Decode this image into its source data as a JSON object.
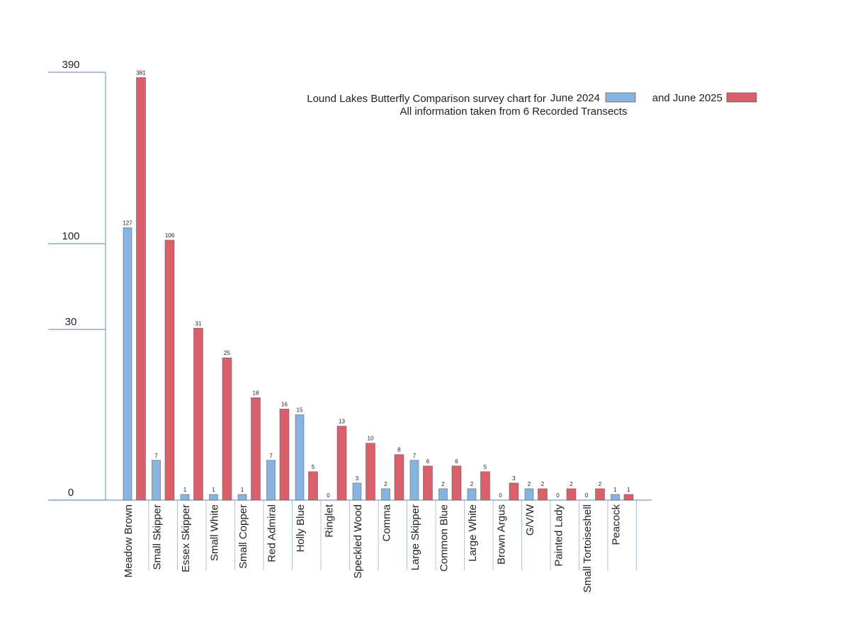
{
  "chart_data": {
    "type": "bar",
    "title": "Lound Lakes Butterfly Comparison survey chart for",
    "subtitle": "All information taken from  6  Recorded Transects",
    "categories": [
      "Meadow Brown",
      "Small Skipper",
      "Essex Skipper",
      "Small White",
      "Small Copper",
      "Red Admiral",
      "Holly Blue",
      "Ringlet",
      "Speckled Wood",
      "Comma",
      "Large Skipper",
      "Common Blue",
      "Large White",
      "Brown Argus",
      "G/V/W",
      "Painted Lady",
      "Small Tortoiseshell",
      "Peacock"
    ],
    "series": [
      {
        "name": "June 2024",
        "color": "#86b3e0",
        "values": [
          127,
          7,
          1,
          1,
          1,
          7,
          15,
          0,
          3,
          2,
          7,
          2,
          2,
          0,
          2,
          0,
          0,
          1
        ]
      },
      {
        "name": "and June 2025",
        "color": "#d95f6b",
        "values": [
          381,
          106,
          31,
          25,
          18,
          16,
          5,
          13,
          10,
          8,
          6,
          6,
          5,
          3,
          2,
          2,
          2,
          1
        ]
      }
    ],
    "ylim": [
      0,
      390
    ],
    "yticks": [
      0,
      30,
      100,
      390
    ],
    "y_scale": "piecewise-linear",
    "grid": false
  }
}
